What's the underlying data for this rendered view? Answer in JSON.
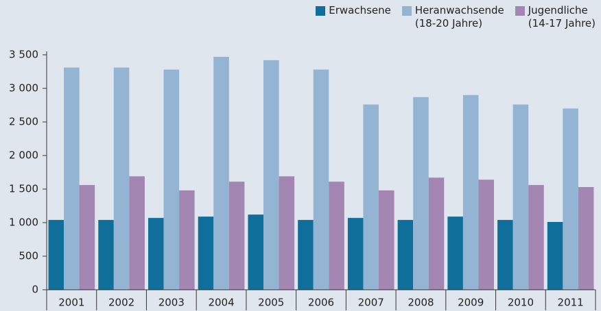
{
  "chart_data": {
    "type": "bar",
    "categories": [
      "2001",
      "2002",
      "2003",
      "2004",
      "2005",
      "2006",
      "2007",
      "2008",
      "2009",
      "2010",
      "2011"
    ],
    "series": [
      {
        "name": "Erwachsene",
        "color": "#0f6e9a",
        "values": [
          1040,
          1040,
          1070,
          1090,
          1120,
          1040,
          1070,
          1040,
          1090,
          1040,
          1010
        ]
      },
      {
        "name": "Heranwachsende\n(18-20 Jahre)",
        "color": "#93b4d3",
        "values": [
          3310,
          3310,
          3280,
          3470,
          3420,
          3280,
          2760,
          2870,
          2900,
          2760,
          2700
        ]
      },
      {
        "name": "Jugendliche\n(14-17 Jahre)",
        "color": "#a386b1",
        "values": [
          1560,
          1690,
          1480,
          1610,
          1690,
          1610,
          1480,
          1670,
          1640,
          1560,
          1530
        ]
      }
    ],
    "ylim": [
      0,
      3500
    ],
    "yticks": [
      0,
      500,
      {
        "value": 1000,
        "label": "1 000"
      },
      {
        "value": 1500,
        "label": "1 500"
      },
      {
        "value": 2000,
        "label": "2 000"
      },
      {
        "value": 2500,
        "label": "2 500"
      },
      {
        "value": 3000,
        "label": "3 000"
      },
      {
        "value": 3500,
        "label": "3 500"
      }
    ],
    "grid": false,
    "legend": "top-right"
  }
}
